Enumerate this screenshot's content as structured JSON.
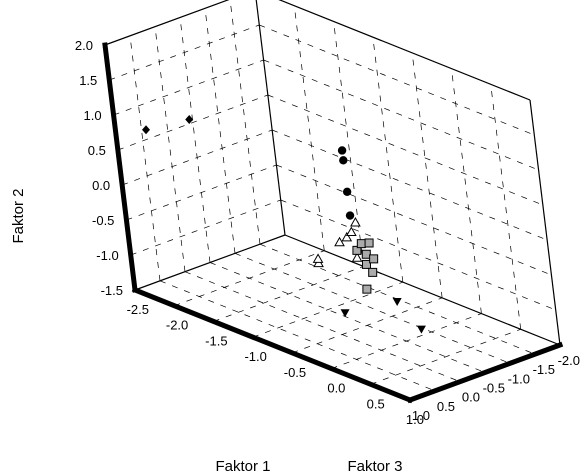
{
  "chart_data": {
    "type": "scatter3d",
    "title": "",
    "axes": {
      "x": {
        "label": "Faktor 1",
        "range": [
          -2.5,
          1.0
        ],
        "ticks": [
          "-2.5",
          "-2.0",
          "-1.5",
          "-1.0",
          "-0.5",
          "0.0",
          "0.5",
          "1.0"
        ]
      },
      "y": {
        "label": "Faktor 2",
        "range": [
          -1.5,
          2.0
        ],
        "ticks": [
          "-1.5",
          "-1.0",
          "-0.5",
          "0.0",
          "0.5",
          "1.0",
          "1.5",
          "2.0"
        ]
      },
      "z": {
        "label": "Faktor 3",
        "range": [
          -2.0,
          1.0
        ],
        "ticks": [
          "-2.0",
          "-1.5",
          "-1.0",
          "-0.5",
          "0.0",
          "0.5",
          "1.0"
        ]
      }
    },
    "grid": true,
    "series": [
      {
        "marker": "diamond",
        "color": "#000000",
        "points": [
          {
            "x": -2.3,
            "y": 0.8,
            "z": 0.7
          },
          {
            "x": -1.6,
            "y": 1.3,
            "z": 0.85
          }
        ]
      },
      {
        "marker": "circle",
        "color": "#000000",
        "points": [
          {
            "x": 0.5,
            "y": 1.84,
            "z": 1.0
          },
          {
            "x": 0.5,
            "y": 1.7,
            "z": 1.0
          },
          {
            "x": 0.5,
            "y": 1.25,
            "z": 1.0
          },
          {
            "x": 0.5,
            "y": 0.91,
            "z": 1.0
          }
        ]
      },
      {
        "marker": "triangle-open",
        "color": "#000000",
        "points": [
          {
            "x": 0.0,
            "y": 0.0,
            "z": 1.0
          },
          {
            "x": 0.0,
            "y": 0.06,
            "z": 1.0
          },
          {
            "x": 0.0,
            "y": 0.18,
            "z": 0.55
          },
          {
            "x": 0.0,
            "y": 0.21,
            "z": 0.4
          },
          {
            "x": 0.0,
            "y": 0.26,
            "z": 0.3
          },
          {
            "x": 0.0,
            "y": 0.37,
            "z": 0.2
          },
          {
            "x": 0.0,
            "y": -0.12,
            "z": 0.25
          }
        ]
      },
      {
        "marker": "square",
        "color": "#aaaaaa",
        "points": [
          {
            "x": 0.5,
            "y": 0.4,
            "z": 0.95
          },
          {
            "x": 0.5,
            "y": 0.47,
            "z": 0.85
          },
          {
            "x": 0.5,
            "y": 0.44,
            "z": 0.7
          },
          {
            "x": 0.5,
            "y": 0.3,
            "z": 0.78
          },
          {
            "x": 0.5,
            "y": 0.16,
            "z": 0.8
          },
          {
            "x": 0.5,
            "y": 0.2,
            "z": 0.65
          },
          {
            "x": 0.5,
            "y": 0.02,
            "z": 0.7
          },
          {
            "x": 0.5,
            "y": -0.18,
            "z": 0.85
          }
        ]
      },
      {
        "marker": "triangle-down",
        "color": "#000000",
        "points": [
          {
            "x": 0.5,
            "y": -0.5,
            "z": 0.3
          },
          {
            "x": 0.5,
            "y": -1.0,
            "z": -0.1
          },
          {
            "x": -0.6,
            "y": -1.3,
            "z": -0.25
          }
        ]
      }
    ]
  }
}
